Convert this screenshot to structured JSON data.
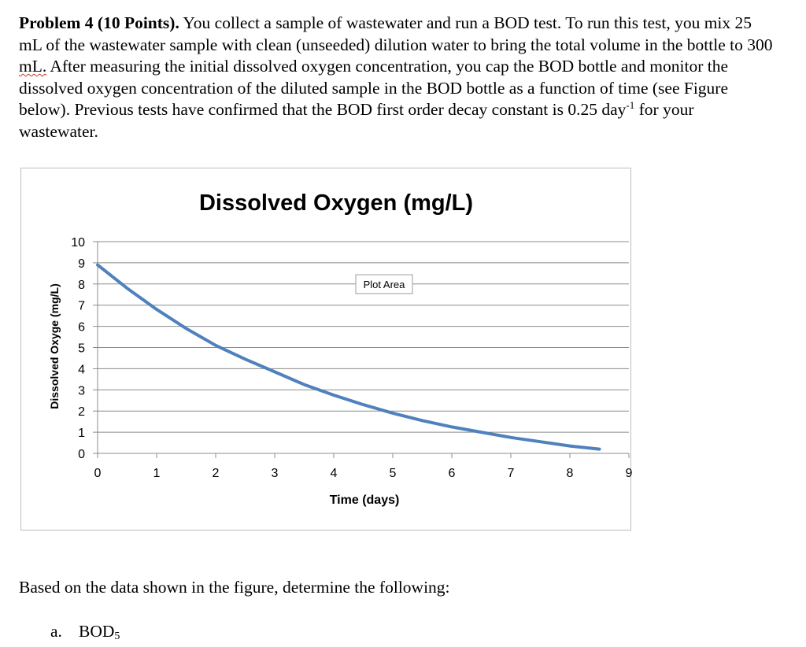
{
  "problem": {
    "heading": "Problem 4 (10 Points).",
    "text1": " You collect a sample of wastewater and run a BOD test.  To run this test, you mix 25 mL of the wastewater sample with clean (unseeded) dilution water to bring the total volume in the bottle to 300 ",
    "text_squiggle": "mL.",
    "text2": "  After measuring the initial dissolved oxygen concentration, you cap the BOD bottle and monitor the dissolved oxygen concentration of the diluted sample in the BOD bottle as a function of time (see Figure below).  Previous tests have confirmed that the BOD first order decay constant is 0.25 day",
    "superscript": "-1",
    "text3": " for your wastewater."
  },
  "chart_data": {
    "type": "line",
    "title": "Dissolved Oxygen (mg/L)",
    "xlabel": "Time (days)",
    "ylabel": "Dissolved Oxyge (mg/L)",
    "xlim": [
      0,
      9
    ],
    "ylim": [
      0,
      10
    ],
    "xticks": [
      0,
      1,
      2,
      3,
      4,
      5,
      6,
      7,
      8,
      9
    ],
    "yticks": [
      0,
      1,
      2,
      3,
      4,
      5,
      6,
      7,
      8,
      9,
      10
    ],
    "grid": true,
    "tooltip_label": "Plot Area",
    "series_color": "#4f81bd",
    "series": [
      {
        "x": [
          0,
          0.5,
          1,
          1.5,
          2,
          2.5,
          3,
          3.5,
          4,
          4.5,
          5,
          5.5,
          6,
          6.5,
          7,
          7.5,
          8,
          8.5
        ],
        "y": [
          8.9,
          7.8,
          6.8,
          5.9,
          5.1,
          4.45,
          3.85,
          3.25,
          2.75,
          2.3,
          1.9,
          1.55,
          1.25,
          1.0,
          0.75,
          0.55,
          0.35,
          0.2
        ]
      }
    ]
  },
  "question": "Based on the data shown in the figure, determine the following:",
  "items": [
    {
      "label": "a.",
      "text": "BOD",
      "subscript": "5"
    }
  ]
}
